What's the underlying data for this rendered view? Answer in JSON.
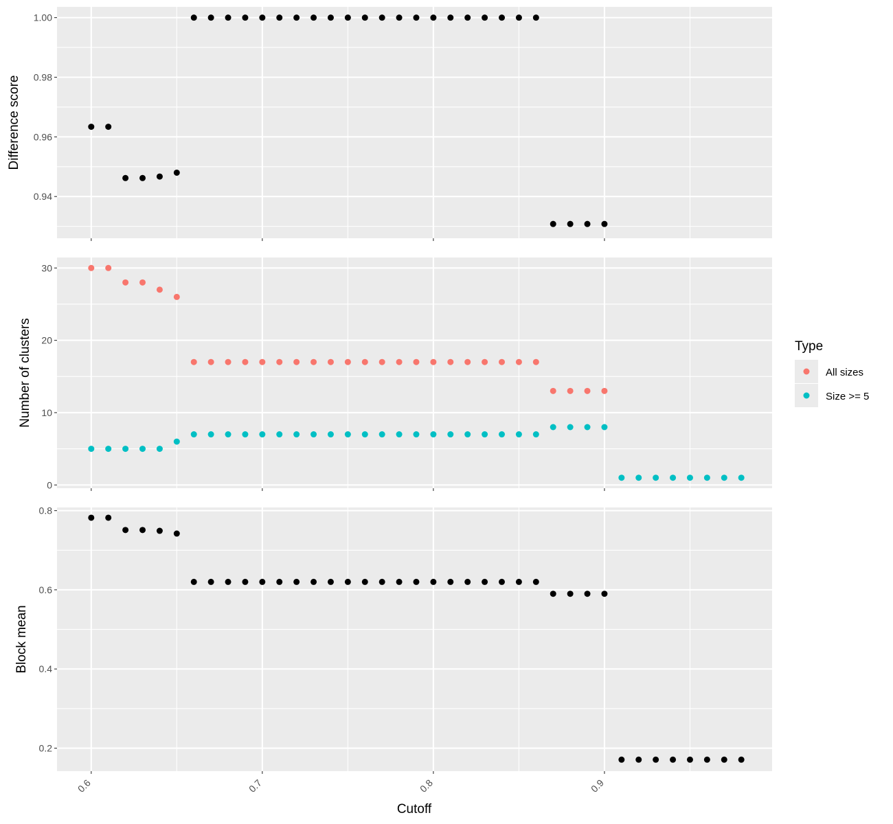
{
  "chart_data": [
    {
      "type": "scatter",
      "panel": "difference",
      "ylabel": "Difference score",
      "xlabel": "",
      "xlim": [
        0.58,
        0.998
      ],
      "ylim": [
        0.926,
        1.0036
      ],
      "yticks": [
        0.94,
        0.96,
        0.98,
        1.0
      ],
      "ytick_labels": [
        "0.94",
        "0.96",
        "0.98",
        "1.00"
      ],
      "series": [
        {
          "color": "#000000",
          "points": [
            [
              0.6,
              0.9634
            ],
            [
              0.61,
              0.9634
            ],
            [
              0.62,
              0.9462
            ],
            [
              0.63,
              0.9462
            ],
            [
              0.64,
              0.9467
            ],
            [
              0.65,
              0.948
            ],
            [
              0.66,
              1.0
            ],
            [
              0.67,
              1.0
            ],
            [
              0.68,
              1.0
            ],
            [
              0.69,
              1.0
            ],
            [
              0.7,
              1.0
            ],
            [
              0.71,
              1.0
            ],
            [
              0.72,
              1.0
            ],
            [
              0.73,
              1.0
            ],
            [
              0.74,
              1.0
            ],
            [
              0.75,
              1.0
            ],
            [
              0.76,
              1.0
            ],
            [
              0.77,
              1.0
            ],
            [
              0.78,
              1.0
            ],
            [
              0.79,
              1.0
            ],
            [
              0.8,
              1.0
            ],
            [
              0.81,
              1.0
            ],
            [
              0.82,
              1.0
            ],
            [
              0.83,
              1.0
            ],
            [
              0.84,
              1.0
            ],
            [
              0.85,
              1.0
            ],
            [
              0.86,
              1.0
            ],
            [
              0.87,
              0.9308
            ],
            [
              0.88,
              0.9308
            ],
            [
              0.89,
              0.9308
            ],
            [
              0.9,
              0.9308
            ]
          ]
        }
      ]
    },
    {
      "type": "scatter",
      "panel": "clusters",
      "ylabel": "Number of clusters",
      "xlabel": "",
      "xlim": [
        0.58,
        0.998
      ],
      "ylim": [
        -0.45,
        31.45
      ],
      "yticks": [
        0,
        10,
        20,
        30
      ],
      "ytick_labels": [
        "0",
        "10",
        "20",
        "30"
      ],
      "legend": {
        "title": "Type",
        "position": "right"
      },
      "series": [
        {
          "name": "All sizes",
          "color": "#f8766d",
          "points": [
            [
              0.6,
              30
            ],
            [
              0.61,
              30
            ],
            [
              0.62,
              28
            ],
            [
              0.63,
              28
            ],
            [
              0.64,
              27
            ],
            [
              0.65,
              26
            ],
            [
              0.66,
              17
            ],
            [
              0.67,
              17
            ],
            [
              0.68,
              17
            ],
            [
              0.69,
              17
            ],
            [
              0.7,
              17
            ],
            [
              0.71,
              17
            ],
            [
              0.72,
              17
            ],
            [
              0.73,
              17
            ],
            [
              0.74,
              17
            ],
            [
              0.75,
              17
            ],
            [
              0.76,
              17
            ],
            [
              0.77,
              17
            ],
            [
              0.78,
              17
            ],
            [
              0.79,
              17
            ],
            [
              0.8,
              17
            ],
            [
              0.81,
              17
            ],
            [
              0.82,
              17
            ],
            [
              0.83,
              17
            ],
            [
              0.84,
              17
            ],
            [
              0.85,
              17
            ],
            [
              0.86,
              17
            ],
            [
              0.87,
              13
            ],
            [
              0.88,
              13
            ],
            [
              0.89,
              13
            ],
            [
              0.9,
              13
            ]
          ]
        },
        {
          "name": "Size >= 5",
          "color": "#00bfc4",
          "points": [
            [
              0.6,
              5
            ],
            [
              0.61,
              5
            ],
            [
              0.62,
              5
            ],
            [
              0.63,
              5
            ],
            [
              0.64,
              5
            ],
            [
              0.65,
              6
            ],
            [
              0.66,
              7
            ],
            [
              0.67,
              7
            ],
            [
              0.68,
              7
            ],
            [
              0.69,
              7
            ],
            [
              0.7,
              7
            ],
            [
              0.71,
              7
            ],
            [
              0.72,
              7
            ],
            [
              0.73,
              7
            ],
            [
              0.74,
              7
            ],
            [
              0.75,
              7
            ],
            [
              0.76,
              7
            ],
            [
              0.77,
              7
            ],
            [
              0.78,
              7
            ],
            [
              0.79,
              7
            ],
            [
              0.8,
              7
            ],
            [
              0.81,
              7
            ],
            [
              0.82,
              7
            ],
            [
              0.83,
              7
            ],
            [
              0.84,
              7
            ],
            [
              0.85,
              7
            ],
            [
              0.86,
              7
            ],
            [
              0.87,
              8
            ],
            [
              0.88,
              8
            ],
            [
              0.89,
              8
            ],
            [
              0.9,
              8
            ],
            [
              0.91,
              1
            ],
            [
              0.92,
              1
            ],
            [
              0.93,
              1
            ],
            [
              0.94,
              1
            ],
            [
              0.95,
              1
            ],
            [
              0.96,
              1
            ],
            [
              0.97,
              1
            ],
            [
              0.98,
              1
            ]
          ]
        }
      ]
    },
    {
      "type": "scatter",
      "panel": "blockmean",
      "ylabel": "Block mean",
      "xlabel": "Cutoff",
      "xlim": [
        0.58,
        0.998
      ],
      "ylim": [
        0.142,
        0.808
      ],
      "yticks": [
        0.2,
        0.4,
        0.6,
        0.8
      ],
      "ytick_labels": [
        "0.2",
        "0.4",
        "0.6",
        "0.8"
      ],
      "xticks": [
        0.6,
        0.7,
        0.8,
        0.9
      ],
      "xtick_labels": [
        "0.6",
        "0.7",
        "0.8",
        "0.9"
      ],
      "series": [
        {
          "color": "#000000",
          "points": [
            [
              0.6,
              0.782
            ],
            [
              0.61,
              0.782
            ],
            [
              0.62,
              0.751
            ],
            [
              0.63,
              0.751
            ],
            [
              0.64,
              0.749
            ],
            [
              0.65,
              0.742
            ],
            [
              0.66,
              0.62
            ],
            [
              0.67,
              0.62
            ],
            [
              0.68,
              0.62
            ],
            [
              0.69,
              0.62
            ],
            [
              0.7,
              0.62
            ],
            [
              0.71,
              0.62
            ],
            [
              0.72,
              0.62
            ],
            [
              0.73,
              0.62
            ],
            [
              0.74,
              0.62
            ],
            [
              0.75,
              0.62
            ],
            [
              0.76,
              0.62
            ],
            [
              0.77,
              0.62
            ],
            [
              0.78,
              0.62
            ],
            [
              0.79,
              0.62
            ],
            [
              0.8,
              0.62
            ],
            [
              0.81,
              0.62
            ],
            [
              0.82,
              0.62
            ],
            [
              0.83,
              0.62
            ],
            [
              0.84,
              0.62
            ],
            [
              0.85,
              0.62
            ],
            [
              0.86,
              0.62
            ],
            [
              0.87,
              0.59
            ],
            [
              0.88,
              0.59
            ],
            [
              0.89,
              0.59
            ],
            [
              0.9,
              0.59
            ],
            [
              0.91,
              0.171
            ],
            [
              0.92,
              0.171
            ],
            [
              0.93,
              0.171
            ],
            [
              0.94,
              0.171
            ],
            [
              0.95,
              0.171
            ],
            [
              0.96,
              0.171
            ],
            [
              0.97,
              0.171
            ],
            [
              0.98,
              0.171
            ]
          ]
        }
      ]
    }
  ],
  "axes": {
    "xlabel": "Cutoff",
    "xticks": [
      0.6,
      0.7,
      0.8,
      0.9
    ],
    "xtick_labels": [
      "0.6",
      "0.7",
      "0.8",
      "0.9"
    ],
    "x_minor": [
      0.65,
      0.75,
      0.85,
      0.95
    ],
    "x_tick_rotation_deg": -45
  },
  "legend": {
    "title": "Type",
    "entries": [
      {
        "label": "All sizes",
        "color": "#f8766d"
      },
      {
        "label": "Size >= 5",
        "color": "#00bfc4"
      }
    ]
  },
  "style": {
    "panel_background": "#ebebeb",
    "grid_color": "#ffffff",
    "tick_color": "#333333",
    "text_color": "#4d4d4d"
  }
}
